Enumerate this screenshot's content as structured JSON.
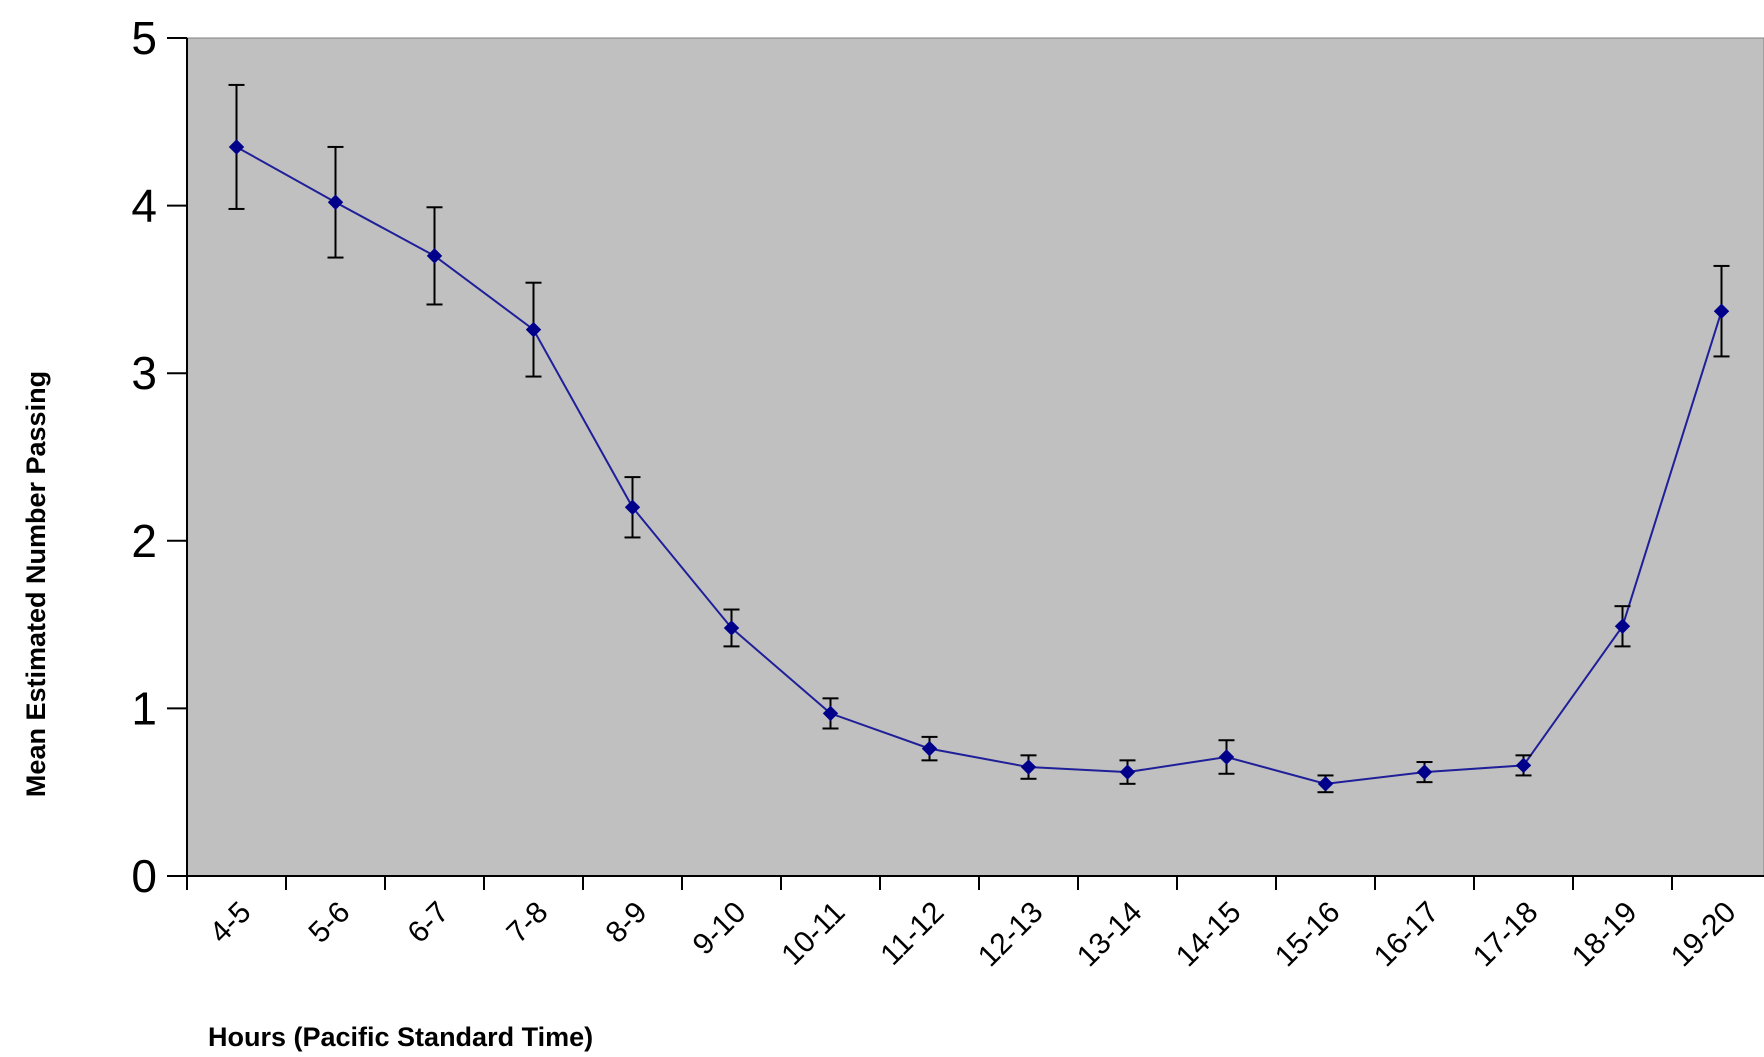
{
  "chart_data": {
    "type": "line",
    "xlabel": "Hours (Pacific Standard Time)",
    "ylabel": "Mean Estimated Number Passing",
    "ylim": [
      0,
      5
    ],
    "yticks": [
      "0",
      "1",
      "2",
      "3",
      "4",
      "5"
    ],
    "grid": false,
    "legend": "none",
    "colors": {
      "plot_background": "#c0c0c0",
      "line": "#1f1f99",
      "marker": "#00008b",
      "error_bar": "#000000"
    },
    "categories": [
      "4-5",
      "5-6",
      "6-7",
      "7-8",
      "8-9",
      "9-10",
      "10-11",
      "11-12",
      "12-13",
      "13-14",
      "14-15",
      "15-16",
      "16-17",
      "17-18",
      "18-19",
      "19-20"
    ],
    "series": [
      {
        "values": [
          4.35,
          4.02,
          3.7,
          3.26,
          2.2,
          1.48,
          0.97,
          0.76,
          0.65,
          0.62,
          0.71,
          0.55,
          0.62,
          0.66,
          1.49,
          3.37
        ],
        "error": [
          0.37,
          0.33,
          0.29,
          0.28,
          0.18,
          0.11,
          0.09,
          0.07,
          0.07,
          0.07,
          0.1,
          0.05,
          0.06,
          0.06,
          0.12,
          0.27
        ]
      }
    ]
  }
}
